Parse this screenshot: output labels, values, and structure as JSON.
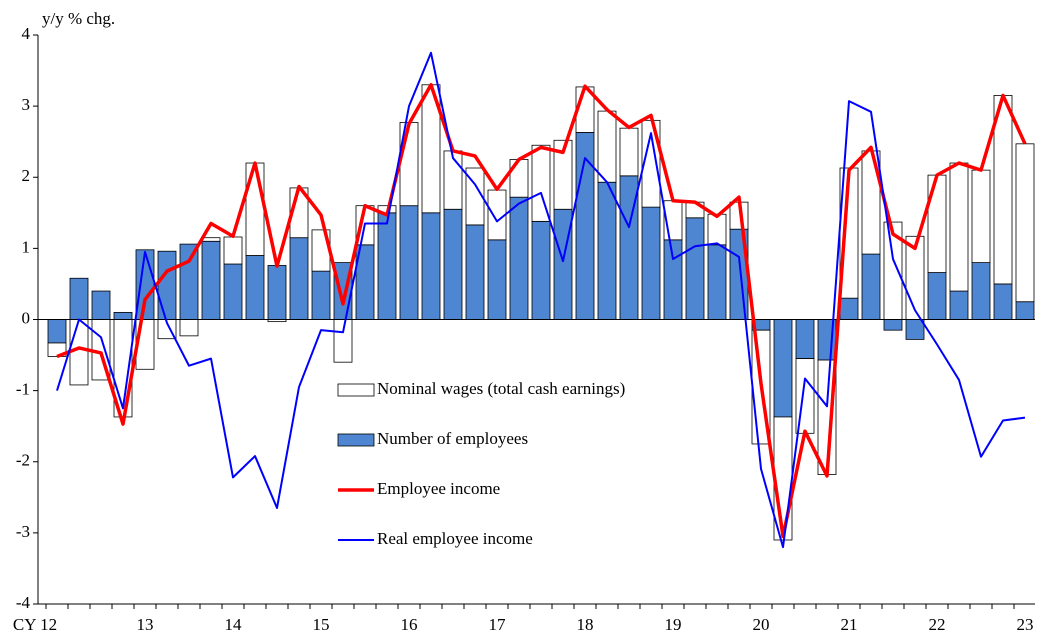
{
  "chart_data": {
    "type": "bar",
    "y_label": "y/y % chg.",
    "categories": [
      "CY 12",
      null,
      null,
      null,
      "13",
      null,
      null,
      null,
      "14",
      null,
      null,
      null,
      "15",
      null,
      null,
      null,
      "16",
      null,
      null,
      null,
      "17",
      null,
      null,
      null,
      "18",
      null,
      null,
      null,
      "19",
      null,
      null,
      null,
      "20",
      null,
      null,
      null,
      "21",
      null,
      null,
      null,
      "22",
      null,
      null,
      null,
      "23"
    ],
    "ylim": [
      -4,
      4
    ],
    "yticks": [
      -4,
      -3,
      -2,
      -1,
      0,
      1,
      2,
      3,
      4
    ],
    "series": [
      {
        "name": "Nominal wages (total cash earnings)",
        "type": "bar",
        "color": "#ffffff",
        "values": [
          -0.19,
          -0.92,
          -0.85,
          -1.37,
          -0.7,
          -0.27,
          -0.23,
          0.05,
          0.38,
          1.3,
          -0.03,
          0.7,
          0.58,
          -0.6,
          0.55,
          0.1,
          1.17,
          1.8,
          0.82,
          0.8,
          0.7,
          0.53,
          1.07,
          0.97,
          0.64,
          1.0,
          0.67,
          1.22,
          0.55,
          0.22,
          0.43,
          0.38,
          -1.6,
          -1.73,
          -1.05,
          -1.61,
          1.83,
          1.45,
          1.37,
          1.17,
          1.37,
          1.8,
          1.3,
          2.65,
          2.22
        ]
      },
      {
        "name": "Number of employees",
        "type": "bar",
        "color": "#4f86d2",
        "values": [
          -0.33,
          0.58,
          0.4,
          0.1,
          0.98,
          0.96,
          1.06,
          1.1,
          0.78,
          0.9,
          0.76,
          1.15,
          0.68,
          0.8,
          1.05,
          1.5,
          1.6,
          1.5,
          1.55,
          1.33,
          1.12,
          1.72,
          1.38,
          1.55,
          2.63,
          1.93,
          2.02,
          1.58,
          1.12,
          1.43,
          1.05,
          1.27,
          -0.15,
          -1.37,
          -0.55,
          -0.57,
          0.3,
          0.92,
          -0.15,
          -0.28,
          0.66,
          0.4,
          0.8,
          0.5,
          0.25
        ]
      },
      {
        "name": "Employee income",
        "type": "line",
        "color": "#ff0000",
        "values": [
          -0.52,
          -0.4,
          -0.47,
          -1.47,
          0.28,
          0.68,
          0.82,
          1.35,
          1.17,
          2.2,
          0.75,
          1.87,
          1.47,
          0.22,
          1.6,
          1.47,
          2.75,
          3.3,
          2.37,
          2.3,
          1.83,
          2.25,
          2.42,
          2.35,
          3.28,
          2.95,
          2.7,
          2.87,
          1.67,
          1.65,
          1.45,
          1.72,
          -0.9,
          -3.05,
          -1.57,
          -2.2,
          2.1,
          2.42,
          1.2,
          1.0,
          2.03,
          2.2,
          2.1,
          3.15,
          2.47
        ]
      },
      {
        "name": "Real employee income",
        "type": "line",
        "color": "#0000ff",
        "values": [
          -1.0,
          0.0,
          -0.25,
          -1.25,
          0.95,
          -0.05,
          -0.65,
          -0.55,
          -2.22,
          -1.92,
          -2.65,
          -0.95,
          -0.15,
          -0.18,
          1.35,
          1.35,
          3.0,
          3.75,
          2.27,
          1.9,
          1.38,
          1.63,
          1.78,
          0.82,
          2.27,
          1.93,
          1.3,
          2.62,
          0.85,
          1.03,
          1.07,
          0.88,
          -2.1,
          -3.2,
          -0.83,
          -1.22,
          3.07,
          2.92,
          0.85,
          0.13,
          -0.35,
          -0.85,
          -1.93,
          -1.42,
          -1.38
        ]
      }
    ]
  }
}
